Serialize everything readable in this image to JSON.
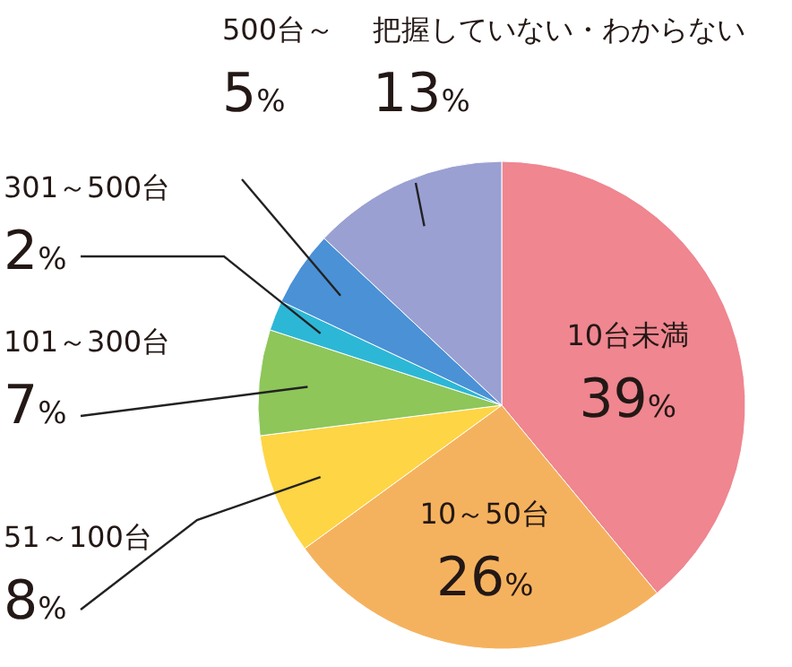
{
  "chart_data": {
    "type": "pie",
    "categories": [
      "10台未満",
      "10～50台",
      "51～100台",
      "101～300台",
      "301～500台",
      "500台～",
      "把握していない・わからない"
    ],
    "values": [
      39,
      26,
      8,
      7,
      2,
      5,
      13
    ],
    "colors": [
      "#ef8690",
      "#f5b25e",
      "#fed544",
      "#8ec65a",
      "#2db7d6",
      "#4b91d6",
      "#9aa0d2"
    ],
    "value_labels": [
      "39%",
      "26%",
      "8%",
      "7%",
      "2%",
      "5%",
      "13%"
    ]
  }
}
